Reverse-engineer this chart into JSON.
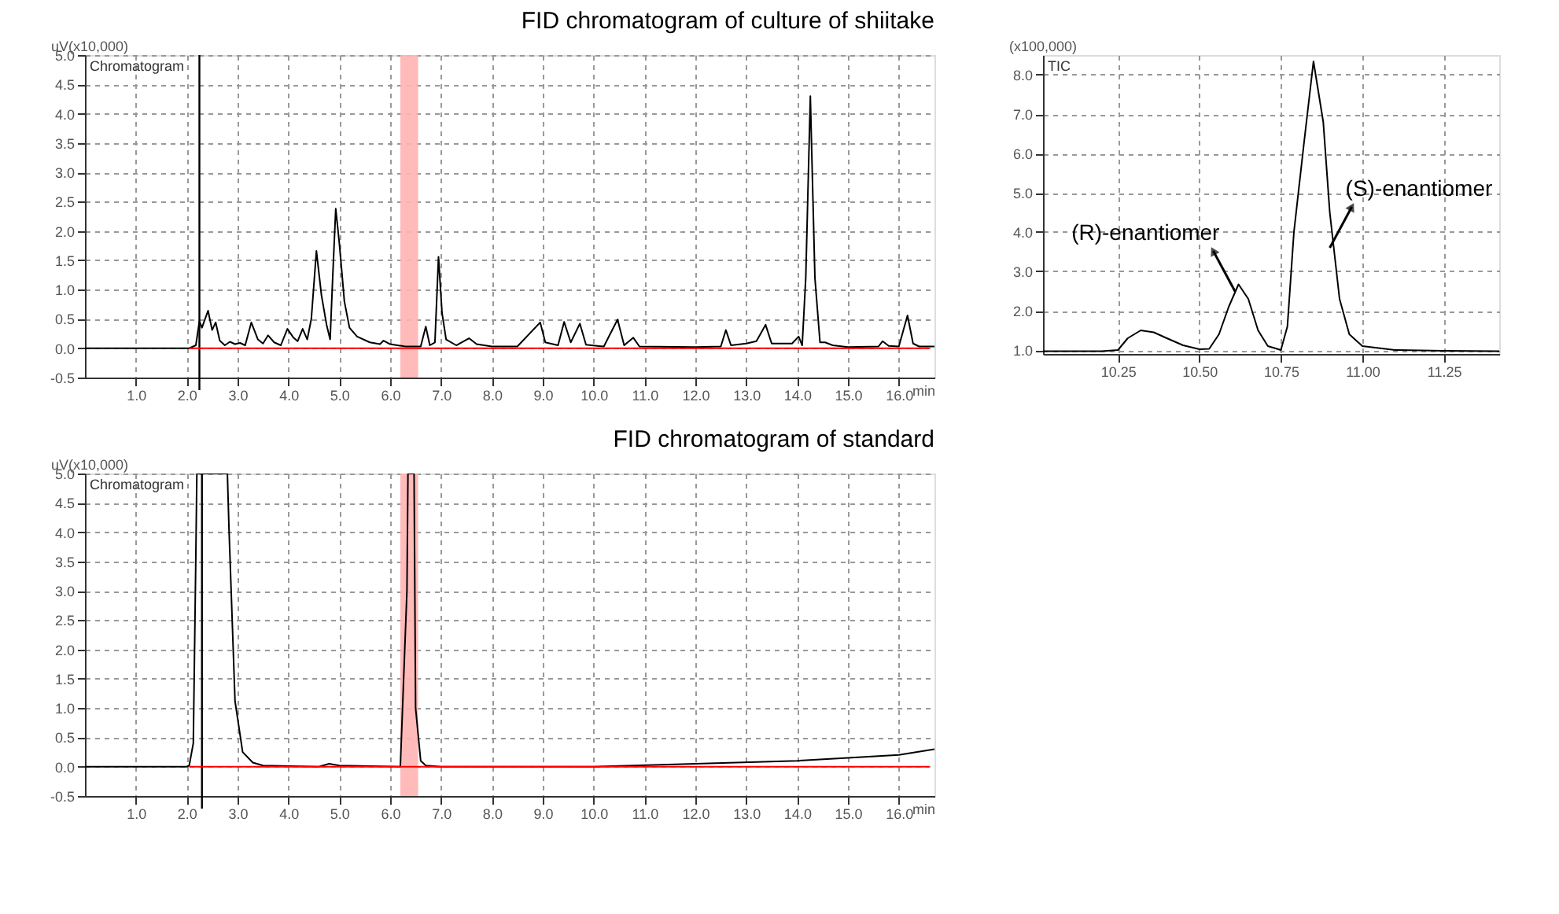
{
  "chart_data": [
    {
      "type": "line",
      "title": "FID chromatogram of culture of shiitake",
      "xlabel": "min",
      "ylabel": "uV(x10,000)",
      "annotations": [
        "Chromatogram"
      ],
      "xlim": [
        0,
        16.7
      ],
      "ylim": [
        -0.5,
        5.0
      ],
      "xticks": [
        {
          "value": 1,
          "label": "1.0"
        },
        {
          "value": 2,
          "label": "2.0"
        },
        {
          "value": 3,
          "label": "3.0"
        },
        {
          "value": 4,
          "label": "4.0"
        },
        {
          "value": 5,
          "label": "5.0"
        },
        {
          "value": 6,
          "label": "6.0"
        },
        {
          "value": 7,
          "label": "7.0"
        },
        {
          "value": 8,
          "label": "8.0"
        },
        {
          "value": 9,
          "label": "9.0"
        },
        {
          "value": 10,
          "label": "10.0"
        },
        {
          "value": 11,
          "label": "11.0"
        },
        {
          "value": 12,
          "label": "12.0"
        },
        {
          "value": 13,
          "label": "13.0"
        },
        {
          "value": 14,
          "label": "14.0"
        },
        {
          "value": 15,
          "label": "15.0"
        },
        {
          "value": 16,
          "label": "16.0"
        }
      ],
      "yticks": [
        -0.5,
        {
          "value": 0,
          "label": "0.0"
        },
        0.5,
        {
          "value": 1,
          "label": "1.0"
        },
        1.5,
        {
          "value": 2,
          "label": "2.0"
        },
        2.5,
        {
          "value": 3,
          "label": "3.0"
        },
        3.5,
        {
          "value": 4,
          "label": "4.0"
        },
        4.5,
        {
          "value": 5,
          "label": "5.0"
        }
      ],
      "grid": true,
      "line_style": "solid",
      "bands": [
        {
          "axis": "x",
          "from": 6.2,
          "to": 6.55,
          "color": "#ffb3b3"
        }
      ],
      "ref_lines": [
        {
          "axis": "x",
          "value": 2.25,
          "color": "#000000"
        }
      ],
      "series": [
        {
          "color": "#000000",
          "x": [
            0,
            2.05,
            2.18,
            2.25,
            2.3,
            2.42,
            2.5,
            2.57,
            2.65,
            2.75,
            2.85,
            2.95,
            3.05,
            3.15,
            3.27,
            3.4,
            3.5,
            3.6,
            3.72,
            3.85,
            3.98,
            4.1,
            4.18,
            4.28,
            4.37,
            4.45,
            4.55,
            4.65,
            4.75,
            4.82,
            4.87,
            4.93,
            5.0,
            5.1,
            5.2,
            5.35,
            5.6,
            5.8,
            5.87,
            6.0,
            6.3,
            6.6,
            6.7,
            6.78,
            6.88,
            6.95,
            7.02,
            7.1,
            7.3,
            7.55,
            7.7,
            8.0,
            8.5,
            8.95,
            9.05,
            9.3,
            9.42,
            9.55,
            9.73,
            9.85,
            10.2,
            10.47,
            10.6,
            10.78,
            10.9,
            12.0,
            12.5,
            12.6,
            12.7,
            13.0,
            13.2,
            13.38,
            13.5,
            13.9,
            14.03,
            14.1,
            14.17,
            14.26,
            14.35,
            14.45,
            14.55,
            14.7,
            15.0,
            15.6,
            15.68,
            15.8,
            16.0,
            16.17,
            16.28,
            16.4,
            16.7
          ],
          "values": [
            0,
            0,
            0.05,
            0.46,
            0.35,
            0.64,
            0.31,
            0.44,
            0.13,
            0.05,
            0.11,
            0.07,
            0.09,
            0.05,
            0.44,
            0.15,
            0.08,
            0.22,
            0.1,
            0.05,
            0.33,
            0.18,
            0.12,
            0.33,
            0.15,
            0.5,
            1.66,
            0.9,
            0.4,
            0.15,
            1.2,
            2.38,
            1.8,
            0.8,
            0.35,
            0.2,
            0.1,
            0.07,
            0.13,
            0.07,
            0.03,
            0.03,
            0.37,
            0.05,
            0.1,
            1.56,
            0.6,
            0.15,
            0.05,
            0.17,
            0.07,
            0.03,
            0.03,
            0.44,
            0.1,
            0.05,
            0.45,
            0.1,
            0.42,
            0.06,
            0.03,
            0.49,
            0.05,
            0.18,
            0.03,
            0.02,
            0.03,
            0.31,
            0.05,
            0.08,
            0.12,
            0.4,
            0.08,
            0.08,
            0.2,
            0.05,
            1.2,
            4.3,
            1.2,
            0.1,
            0.1,
            0.05,
            0.02,
            0.03,
            0.12,
            0.04,
            0.03,
            0.56,
            0.08,
            0.03,
            0.03
          ]
        },
        {
          "color": "#ff0000",
          "x": [
            2.05,
            16.6
          ],
          "values": [
            0,
            0
          ]
        }
      ]
    },
    {
      "type": "line",
      "title": "FID chromatogram of standard",
      "xlabel": "min",
      "ylabel": "uV(x10,000)",
      "annotations": [
        "Chromatogram"
      ],
      "xlim": [
        0,
        16.7
      ],
      "ylim": [
        -0.5,
        5.0
      ],
      "xticks": [
        {
          "value": 1,
          "label": "1.0"
        },
        {
          "value": 2,
          "label": "2.0"
        },
        {
          "value": 3,
          "label": "3.0"
        },
        {
          "value": 4,
          "label": "4.0"
        },
        {
          "value": 5,
          "label": "5.0"
        },
        {
          "value": 6,
          "label": "6.0"
        },
        {
          "value": 7,
          "label": "7.0"
        },
        {
          "value": 8,
          "label": "8.0"
        },
        {
          "value": 9,
          "label": "9.0"
        },
        {
          "value": 10,
          "label": "10.0"
        },
        {
          "value": 11,
          "label": "11.0"
        },
        {
          "value": 12,
          "label": "12.0"
        },
        {
          "value": 13,
          "label": "13.0"
        },
        {
          "value": 14,
          "label": "14.0"
        },
        {
          "value": 15,
          "label": "15.0"
        },
        {
          "value": 16,
          "label": "16.0"
        }
      ],
      "yticks": [
        -0.5,
        {
          "value": 0,
          "label": "0.0"
        },
        0.5,
        {
          "value": 1,
          "label": "1.0"
        },
        1.5,
        {
          "value": 2,
          "label": "2.0"
        },
        2.5,
        {
          "value": 3,
          "label": "3.0"
        },
        3.5,
        {
          "value": 4,
          "label": "4.0"
        },
        4.5,
        {
          "value": 5,
          "label": "5.0"
        }
      ],
      "grid": true,
      "line_style": "solid",
      "bands": [
        {
          "axis": "x",
          "from": 6.2,
          "to": 6.55,
          "color": "#ffb3b3"
        }
      ],
      "ref_lines": [
        {
          "axis": "x",
          "value": 2.3,
          "color": "#000000"
        }
      ],
      "series": [
        {
          "color": "#000000",
          "x": [
            0,
            2.0,
            2.05,
            2.13,
            2.18,
            2.2,
            2.8,
            2.83,
            2.95,
            3.1,
            3.3,
            3.5,
            4.6,
            4.8,
            5.0,
            6.2,
            6.33,
            6.35,
            6.47,
            6.5,
            6.6,
            6.7,
            7.0,
            10.0,
            12.0,
            14.0,
            15.0,
            16.0,
            16.7
          ],
          "values": [
            0,
            0,
            0.02,
            0.4,
            3.6,
            5.0,
            5.0,
            4.1,
            1.12,
            0.25,
            0.07,
            0.02,
            0,
            0.05,
            0.02,
            0,
            3.0,
            5.0,
            5.0,
            1.0,
            0.1,
            0.02,
            0,
            0,
            0.05,
            0.1,
            0.15,
            0.2,
            0.3
          ]
        },
        {
          "color": "#ff0000",
          "x": [
            2.05,
            16.6
          ],
          "values": [
            0,
            0
          ]
        }
      ]
    },
    {
      "type": "line",
      "ylabel": "(x100,000)",
      "annotations": [
        "TIC",
        {
          "text": "(R)-enantiomer",
          "x": 10.61,
          "y": 2.48
        },
        {
          "text": "(S)-enantiomer",
          "x": 10.9,
          "y": 3.6
        }
      ],
      "xlim": [
        10.02,
        11.42
      ],
      "ylim": [
        0.9,
        8.5
      ],
      "xticks": [
        10.25,
        {
          "value": 10.5,
          "label": "10.50"
        },
        10.75,
        {
          "value": 11,
          "label": "11.00"
        },
        11.25
      ],
      "yticks": [
        {
          "value": 1,
          "label": "1.0"
        },
        {
          "value": 2,
          "label": "2.0"
        },
        {
          "value": 3,
          "label": "3.0"
        },
        {
          "value": 4,
          "label": "4.0"
        },
        {
          "value": 5,
          "label": "5.0"
        },
        {
          "value": 6,
          "label": "6.0"
        },
        {
          "value": 7,
          "label": "7.0"
        },
        {
          "value": 8,
          "label": "8.0"
        }
      ],
      "grid": true,
      "line_style": "solid",
      "series": [
        {
          "color": "#000000",
          "x": [
            10.02,
            10.2,
            10.25,
            10.28,
            10.32,
            10.36,
            10.4,
            10.45,
            10.5,
            10.53,
            10.56,
            10.59,
            10.62,
            10.65,
            10.68,
            10.71,
            10.75,
            10.77,
            10.79,
            10.82,
            10.85,
            10.88,
            10.9,
            10.93,
            10.96,
            11.0,
            11.1,
            11.25,
            11.42
          ],
          "values": [
            0.97,
            0.97,
            1.0,
            1.3,
            1.5,
            1.45,
            1.3,
            1.12,
            1.02,
            1.03,
            1.4,
            2.1,
            2.67,
            2.3,
            1.5,
            1.1,
            1.0,
            1.6,
            4.0,
            6.2,
            8.34,
            6.8,
            4.5,
            2.3,
            1.4,
            1.1,
            1.0,
            0.98,
            0.97
          ]
        }
      ]
    }
  ]
}
